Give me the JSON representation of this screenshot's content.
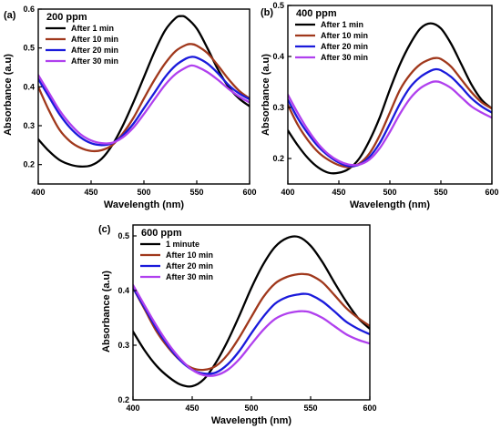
{
  "chart_data": [
    {
      "type": "line",
      "panel_letter": "(a)",
      "title": "200 ppm",
      "xlabel": "Wavelength (nm)",
      "ylabel": "Absorbance (a.u)",
      "xlim": [
        400,
        600
      ],
      "ylim": [
        0.15,
        0.6
      ],
      "xticks": [
        400,
        450,
        500,
        550,
        600
      ],
      "yticks": [
        0.2,
        0.3,
        0.4,
        0.5,
        0.6
      ],
      "xtick_labels": [
        "400",
        "450",
        "500",
        "550",
        "600"
      ],
      "ytick_labels": [
        "0.2",
        "0.3",
        "0.4",
        "0.5",
        "0.6"
      ],
      "legend_position": "top-left",
      "grid": false,
      "series": [
        {
          "name": "After 1 min",
          "color": "#000000",
          "x": [
            400,
            410,
            420,
            430,
            440,
            450,
            460,
            470,
            480,
            490,
            500,
            510,
            520,
            530,
            535,
            540,
            550,
            560,
            570,
            580,
            590,
            600
          ],
          "y": [
            0.265,
            0.235,
            0.212,
            0.2,
            0.195,
            0.198,
            0.215,
            0.25,
            0.3,
            0.36,
            0.425,
            0.49,
            0.545,
            0.577,
            0.582,
            0.578,
            0.55,
            0.5,
            0.445,
            0.4,
            0.37,
            0.35
          ]
        },
        {
          "name": "After 10 min",
          "color": "#a0381c",
          "x": [
            400,
            410,
            420,
            430,
            440,
            450,
            460,
            470,
            480,
            490,
            500,
            510,
            520,
            530,
            540,
            545,
            550,
            560,
            570,
            580,
            590,
            600
          ],
          "y": [
            0.4,
            0.34,
            0.29,
            0.26,
            0.243,
            0.235,
            0.237,
            0.25,
            0.28,
            0.32,
            0.37,
            0.418,
            0.46,
            0.492,
            0.508,
            0.51,
            0.506,
            0.487,
            0.455,
            0.42,
            0.39,
            0.37
          ]
        },
        {
          "name": "After 20 min",
          "color": "#1a1adb",
          "x": [
            400,
            410,
            420,
            430,
            440,
            450,
            460,
            470,
            480,
            490,
            500,
            510,
            520,
            530,
            540,
            545,
            550,
            560,
            570,
            580,
            590,
            600
          ],
          "y": [
            0.42,
            0.375,
            0.33,
            0.295,
            0.27,
            0.255,
            0.25,
            0.255,
            0.275,
            0.305,
            0.345,
            0.385,
            0.425,
            0.455,
            0.473,
            0.477,
            0.475,
            0.46,
            0.435,
            0.405,
            0.383,
            0.368
          ]
        },
        {
          "name": "After 30 min",
          "color": "#b040ee",
          "x": [
            400,
            410,
            420,
            430,
            440,
            450,
            460,
            470,
            480,
            490,
            500,
            510,
            520,
            530,
            540,
            545,
            550,
            560,
            570,
            580,
            590,
            600
          ],
          "y": [
            0.43,
            0.385,
            0.34,
            0.305,
            0.278,
            0.262,
            0.255,
            0.256,
            0.27,
            0.295,
            0.33,
            0.368,
            0.405,
            0.433,
            0.45,
            0.455,
            0.452,
            0.438,
            0.418,
            0.395,
            0.375,
            0.36
          ]
        }
      ]
    },
    {
      "type": "line",
      "panel_letter": "(b)",
      "title": "400 ppm",
      "xlabel": "Wavelength (nm)",
      "ylabel": "Absorbance (a.u)",
      "xlim": [
        400,
        600
      ],
      "ylim": [
        0.15,
        0.5
      ],
      "xticks": [
        400,
        450,
        500,
        550,
        600
      ],
      "yticks": [
        0.2,
        0.3,
        0.4,
        0.5
      ],
      "xtick_labels": [
        "400",
        "450",
        "500",
        "550",
        "600"
      ],
      "ytick_labels": [
        "0.2",
        "0.3",
        "0.4",
        "0.5"
      ],
      "legend_position": "top-left",
      "grid": false,
      "series": [
        {
          "name": "After 1 min",
          "color": "#000000",
          "x": [
            400,
            410,
            420,
            430,
            440,
            450,
            460,
            470,
            480,
            490,
            500,
            510,
            520,
            530,
            540,
            550,
            560,
            570,
            580,
            590,
            600
          ],
          "y": [
            0.255,
            0.225,
            0.2,
            0.182,
            0.172,
            0.172,
            0.18,
            0.2,
            0.235,
            0.28,
            0.335,
            0.385,
            0.425,
            0.455,
            0.465,
            0.455,
            0.425,
            0.385,
            0.345,
            0.315,
            0.298
          ]
        },
        {
          "name": "After 10 min",
          "color": "#a0381c",
          "x": [
            400,
            410,
            420,
            430,
            440,
            450,
            460,
            470,
            480,
            490,
            500,
            510,
            520,
            530,
            540,
            545,
            550,
            560,
            570,
            580,
            590,
            600
          ],
          "y": [
            0.305,
            0.265,
            0.235,
            0.212,
            0.197,
            0.187,
            0.183,
            0.19,
            0.21,
            0.245,
            0.29,
            0.335,
            0.365,
            0.385,
            0.395,
            0.397,
            0.395,
            0.38,
            0.355,
            0.33,
            0.31,
            0.298
          ]
        },
        {
          "name": "After 20 min",
          "color": "#1a1adb",
          "x": [
            400,
            410,
            420,
            430,
            440,
            450,
            460,
            470,
            480,
            490,
            500,
            510,
            520,
            530,
            540,
            545,
            550,
            560,
            570,
            580,
            590,
            600
          ],
          "y": [
            0.315,
            0.278,
            0.248,
            0.223,
            0.205,
            0.192,
            0.185,
            0.188,
            0.203,
            0.23,
            0.268,
            0.308,
            0.34,
            0.36,
            0.372,
            0.375,
            0.373,
            0.36,
            0.34,
            0.318,
            0.302,
            0.29
          ]
        },
        {
          "name": "After 30 min",
          "color": "#b040ee",
          "x": [
            400,
            410,
            420,
            430,
            440,
            450,
            460,
            470,
            480,
            490,
            500,
            510,
            520,
            530,
            540,
            545,
            550,
            560,
            570,
            580,
            590,
            600
          ],
          "y": [
            0.325,
            0.288,
            0.255,
            0.228,
            0.208,
            0.195,
            0.188,
            0.188,
            0.198,
            0.22,
            0.252,
            0.288,
            0.318,
            0.338,
            0.349,
            0.351,
            0.349,
            0.338,
            0.32,
            0.302,
            0.29,
            0.28
          ]
        }
      ]
    },
    {
      "type": "line",
      "panel_letter": "(c)",
      "title": "600 ppm",
      "xlabel": "Wavelength (nm)",
      "ylabel": "Absorbance (a.u)",
      "xlim": [
        400,
        600
      ],
      "ylim": [
        0.2,
        0.52
      ],
      "xticks": [
        400,
        450,
        500,
        550,
        600
      ],
      "yticks": [
        0.2,
        0.3,
        0.4,
        0.5
      ],
      "xtick_labels": [
        "400",
        "450",
        "500",
        "550",
        "600"
      ],
      "ytick_labels": [
        "0.2",
        "0.3",
        "0.4",
        "0.5"
      ],
      "legend_position": "top-left",
      "grid": false,
      "series": [
        {
          "name": "1 minute",
          "color": "#000000",
          "x": [
            400,
            410,
            420,
            430,
            440,
            450,
            460,
            470,
            480,
            490,
            500,
            510,
            520,
            530,
            540,
            550,
            560,
            570,
            580,
            590,
            600
          ],
          "y": [
            0.325,
            0.29,
            0.262,
            0.242,
            0.228,
            0.225,
            0.238,
            0.268,
            0.308,
            0.355,
            0.405,
            0.448,
            0.48,
            0.496,
            0.498,
            0.482,
            0.452,
            0.415,
            0.38,
            0.35,
            0.33
          ]
        },
        {
          "name": "After 10 min",
          "color": "#a0381c",
          "x": [
            400,
            410,
            420,
            430,
            440,
            450,
            460,
            470,
            480,
            490,
            500,
            510,
            520,
            530,
            540,
            545,
            550,
            560,
            570,
            580,
            590,
            600
          ],
          "y": [
            0.405,
            0.365,
            0.325,
            0.295,
            0.272,
            0.258,
            0.255,
            0.262,
            0.283,
            0.315,
            0.352,
            0.388,
            0.413,
            0.425,
            0.43,
            0.43,
            0.428,
            0.415,
            0.392,
            0.368,
            0.35,
            0.335
          ]
        },
        {
          "name": "After 20 min",
          "color": "#1a1adb",
          "x": [
            400,
            410,
            420,
            430,
            440,
            450,
            460,
            470,
            480,
            490,
            500,
            510,
            520,
            530,
            540,
            545,
            550,
            560,
            570,
            580,
            590,
            600
          ],
          "y": [
            0.405,
            0.368,
            0.33,
            0.298,
            0.272,
            0.255,
            0.248,
            0.25,
            0.265,
            0.29,
            0.322,
            0.352,
            0.376,
            0.388,
            0.393,
            0.394,
            0.392,
            0.38,
            0.362,
            0.343,
            0.33,
            0.32
          ]
        },
        {
          "name": "After 30 min",
          "color": "#b040ee",
          "x": [
            400,
            410,
            420,
            430,
            440,
            450,
            460,
            470,
            480,
            490,
            500,
            510,
            520,
            530,
            540,
            545,
            550,
            560,
            570,
            580,
            590,
            600
          ],
          "y": [
            0.41,
            0.372,
            0.335,
            0.302,
            0.275,
            0.255,
            0.245,
            0.245,
            0.255,
            0.275,
            0.302,
            0.328,
            0.348,
            0.358,
            0.362,
            0.362,
            0.36,
            0.35,
            0.335,
            0.32,
            0.31,
            0.303
          ]
        }
      ]
    }
  ]
}
